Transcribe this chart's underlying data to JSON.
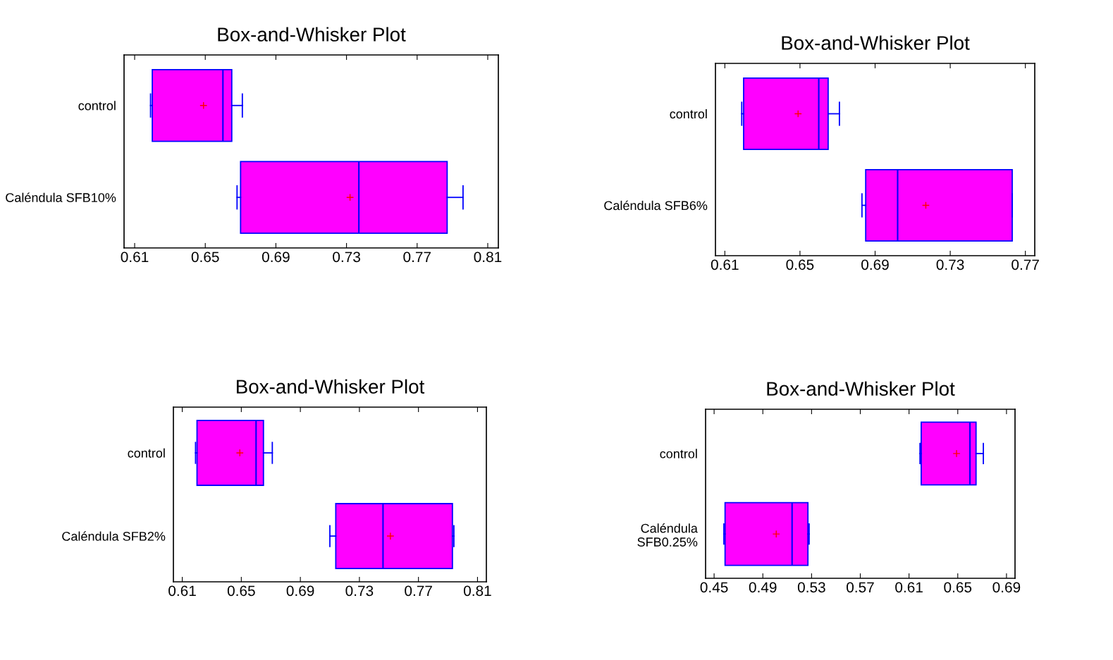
{
  "chart_data": [
    {
      "type": "box",
      "title": "Box-and-Whisker Plot",
      "orientation": "horizontal",
      "categories": [
        "control",
        "Caléndula SFB10%"
      ],
      "color": "#ff00ff",
      "xlim": [
        0.604,
        0.816
      ],
      "xticks": [
        0.61,
        0.65,
        0.69,
        0.73,
        0.77,
        0.81
      ],
      "boxes": [
        {
          "low": 0.619,
          "q1": 0.62,
          "median": 0.66,
          "q3": 0.665,
          "high": 0.671,
          "mean": 0.649
        },
        {
          "low": 0.668,
          "q1": 0.67,
          "median": 0.737,
          "q3": 0.787,
          "high": 0.796,
          "mean": 0.732
        }
      ]
    },
    {
      "type": "box",
      "title": "Box-and-Whisker Plot",
      "orientation": "horizontal",
      "categories": [
        "control",
        "Caléndula SFB6%"
      ],
      "color": "#ff00ff",
      "xlim": [
        0.605,
        0.775
      ],
      "xticks": [
        0.61,
        0.65,
        0.69,
        0.73,
        0.77
      ],
      "boxes": [
        {
          "low": 0.619,
          "q1": 0.62,
          "median": 0.66,
          "q3": 0.665,
          "high": 0.671,
          "mean": 0.649
        },
        {
          "low": 0.683,
          "q1": 0.685,
          "median": 0.702,
          "q3": 0.763,
          "high": 0.763,
          "mean": 0.717
        }
      ]
    },
    {
      "type": "box",
      "title": "Box-and-Whisker Plot",
      "orientation": "horizontal",
      "categories": [
        "control",
        "Caléndula SFB2%"
      ],
      "color": "#ff00ff",
      "xlim": [
        0.604,
        0.816
      ],
      "xticks": [
        0.61,
        0.65,
        0.69,
        0.73,
        0.77,
        0.81
      ],
      "boxes": [
        {
          "low": 0.619,
          "q1": 0.62,
          "median": 0.66,
          "q3": 0.665,
          "high": 0.671,
          "mean": 0.649
        },
        {
          "low": 0.71,
          "q1": 0.714,
          "median": 0.746,
          "q3": 0.793,
          "high": 0.794,
          "mean": 0.751
        }
      ]
    },
    {
      "type": "box",
      "title": "Box-and-Whisker Plot",
      "orientation": "horizontal",
      "categories": [
        "control",
        "Caléndula\nSFB0.25%"
      ],
      "color": "#ff00ff",
      "xlim": [
        0.443,
        0.697
      ],
      "xticks": [
        0.45,
        0.49,
        0.53,
        0.57,
        0.61,
        0.65,
        0.69
      ],
      "boxes": [
        {
          "low": 0.619,
          "q1": 0.62,
          "median": 0.66,
          "q3": 0.665,
          "high": 0.671,
          "mean": 0.649
        },
        {
          "low": 0.458,
          "q1": 0.459,
          "median": 0.514,
          "q3": 0.527,
          "high": 0.528,
          "mean": 0.501
        }
      ]
    }
  ]
}
